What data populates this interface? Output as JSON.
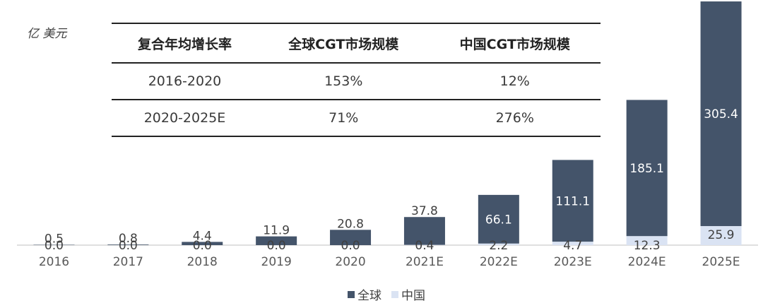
{
  "unit_label": "亿 美元",
  "table": {
    "headers": [
      "复合年均增长率",
      "全球CGT市场规模",
      "中国CGT市场规模"
    ],
    "rows": [
      [
        "2016-2020",
        "153%",
        "12%"
      ],
      [
        "2020-2025E",
        "71%",
        "276%"
      ]
    ]
  },
  "colors": {
    "global": "#44546a",
    "china": "#dae3f3",
    "axis": "#bfbfbf"
  },
  "chart_data": {
    "type": "bar",
    "categories": [
      "2016",
      "2017",
      "2018",
      "2019",
      "2020",
      "2021E",
      "2022E",
      "2023E",
      "2024E",
      "2025E"
    ],
    "series": [
      {
        "name": "全球",
        "values": [
          0.5,
          0.8,
          4.4,
          11.9,
          20.8,
          37.8,
          66.1,
          111.1,
          185.1,
          305.4
        ]
      },
      {
        "name": "中国",
        "values": [
          0.0,
          0.0,
          0.0,
          0.0,
          0.0,
          0.4,
          2.2,
          4.7,
          12.3,
          25.9
        ]
      }
    ],
    "ylabel": "亿 美元",
    "ylim": [
      0,
      305.4
    ],
    "grid": false,
    "legend": "bottom-center"
  }
}
